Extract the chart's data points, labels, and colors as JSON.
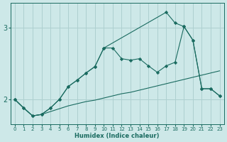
{
  "xlabel": "Humidex (Indice chaleur)",
  "bg_color": "#cde8e8",
  "grid_color": "#aed0d0",
  "line_color": "#1a6b60",
  "xlim": [
    -0.5,
    23.5
  ],
  "ylim": [
    1.65,
    3.35
  ],
  "yticks": [
    2,
    3
  ],
  "xticks": [
    0,
    1,
    2,
    3,
    4,
    5,
    6,
    7,
    8,
    9,
    10,
    11,
    12,
    13,
    14,
    15,
    16,
    17,
    18,
    19,
    20,
    21,
    22,
    23
  ],
  "series1_x": [
    0,
    1,
    2,
    3,
    4,
    5,
    6,
    7,
    8,
    9,
    10,
    11,
    12,
    13,
    14,
    15,
    16,
    17,
    18,
    19,
    20,
    21,
    22,
    23
  ],
  "series1_y": [
    2.0,
    1.88,
    1.77,
    1.79,
    1.83,
    1.87,
    1.91,
    1.94,
    1.97,
    1.99,
    2.02,
    2.05,
    2.08,
    2.1,
    2.13,
    2.16,
    2.19,
    2.22,
    2.25,
    2.28,
    2.31,
    2.34,
    2.37,
    2.4
  ],
  "series2_x": [
    0,
    1,
    2,
    3,
    4,
    5,
    6,
    7,
    8,
    9,
    10,
    11,
    12,
    13,
    14,
    15,
    16,
    17,
    18,
    19,
    20,
    21,
    22,
    23
  ],
  "series2_y": [
    2.0,
    1.88,
    1.77,
    1.79,
    1.88,
    2.0,
    2.18,
    2.27,
    2.37,
    2.46,
    2.72,
    2.72,
    2.57,
    2.55,
    2.57,
    2.47,
    2.38,
    2.47,
    2.52,
    3.02,
    2.83,
    2.15,
    2.15,
    2.05
  ],
  "series3_x": [
    0,
    1,
    2,
    3,
    4,
    5,
    6,
    7,
    8,
    9,
    10,
    17,
    18,
    19,
    20,
    21,
    22,
    23
  ],
  "series3_y": [
    2.0,
    1.88,
    1.77,
    1.79,
    1.88,
    2.0,
    2.18,
    2.27,
    2.37,
    2.46,
    2.72,
    3.22,
    3.07,
    3.02,
    2.83,
    2.15,
    2.15,
    2.05
  ]
}
